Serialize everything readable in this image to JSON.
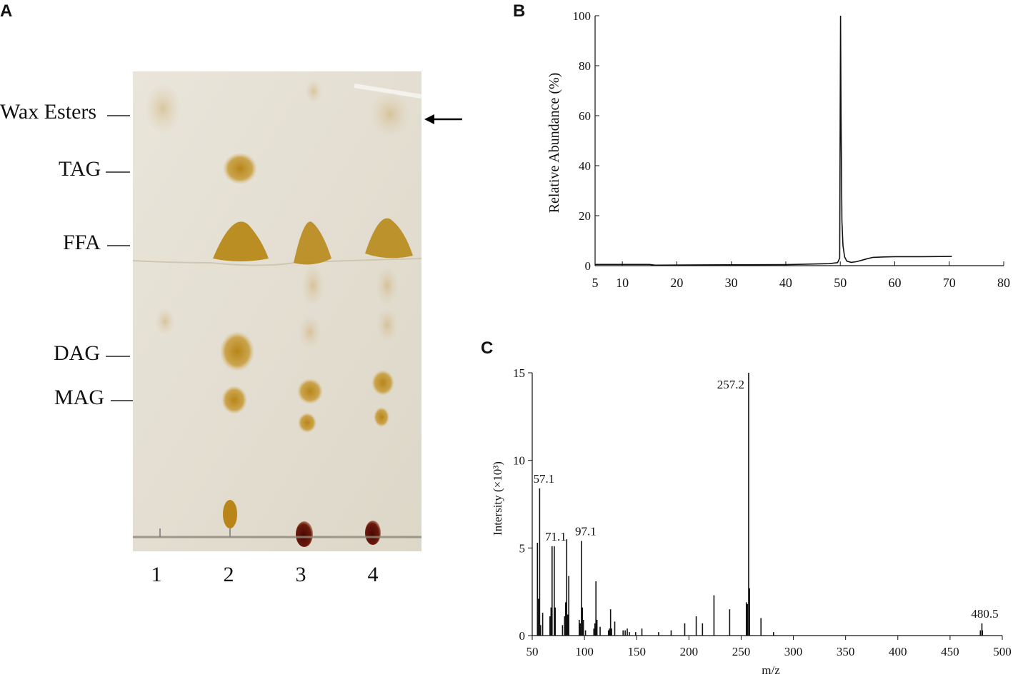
{
  "panels": {
    "a": "A",
    "b": "B",
    "c": "C"
  },
  "tlc": {
    "bands": [
      {
        "id": "wax",
        "label": "Wax Esters"
      },
      {
        "id": "tag",
        "label": "TAG"
      },
      {
        "id": "ffa",
        "label": "FFA"
      },
      {
        "id": "dag",
        "label": "DAG"
      },
      {
        "id": "mag",
        "label": "MAG"
      }
    ],
    "lanes": [
      "1",
      "2",
      "3",
      "4"
    ],
    "arrow": "arrow-left-icon",
    "colors": {
      "plate": "#e6e1d5",
      "spot": "#b5810e",
      "origin_spot": "#5a1008"
    }
  },
  "chart_data": [
    {
      "type": "line",
      "panel": "B",
      "title": "",
      "xlabel": "",
      "ylabel": "Relative  Abundance (%)",
      "xlim": [
        5,
        80
      ],
      "ylim": [
        0,
        100
      ],
      "x_ticks": [
        5,
        10,
        20,
        30,
        40,
        50,
        60,
        70,
        80
      ],
      "y_ticks": [
        0,
        20,
        40,
        60,
        80,
        100
      ],
      "series": [
        {
          "x": [
            5,
            15,
            16,
            25,
            40,
            48,
            49.5,
            49.9,
            50.05,
            50.15,
            50.3,
            50.5,
            50.8,
            51.2,
            52,
            53,
            54,
            55,
            56,
            58,
            60,
            65,
            70.5
          ],
          "y": [
            0.5,
            0.5,
            0.2,
            0.3,
            0.4,
            0.8,
            1.2,
            3,
            100,
            60,
            18,
            8,
            3.5,
            1.8,
            1.3,
            1.6,
            2.2,
            2.8,
            3.3,
            3.5,
            3.6,
            3.6,
            3.7
          ]
        }
      ],
      "grid": false
    },
    {
      "type": "bar",
      "panel": "C",
      "title": "",
      "xlabel": "m/z",
      "ylabel": "Intersity (×10³)",
      "xlim": [
        50,
        500
      ],
      "ylim": [
        0,
        15
      ],
      "x_ticks": [
        50,
        100,
        150,
        200,
        250,
        300,
        350,
        400,
        450,
        500
      ],
      "y_ticks": [
        0,
        5,
        10,
        15
      ],
      "peaks": [
        {
          "mz": 55,
          "intensity": 5.3
        },
        {
          "mz": 56,
          "intensity": 2.1
        },
        {
          "mz": 57.1,
          "intensity": 8.4,
          "label": "57.1"
        },
        {
          "mz": 58,
          "intensity": 0.6
        },
        {
          "mz": 60,
          "intensity": 1.3
        },
        {
          "mz": 67,
          "intensity": 1.1
        },
        {
          "mz": 68,
          "intensity": 1.6
        },
        {
          "mz": 69,
          "intensity": 5.1
        },
        {
          "mz": 71.1,
          "intensity": 5.1,
          "label": "71.1"
        },
        {
          "mz": 72,
          "intensity": 1.6
        },
        {
          "mz": 79,
          "intensity": 0.6
        },
        {
          "mz": 81,
          "intensity": 1.1
        },
        {
          "mz": 82,
          "intensity": 1.9
        },
        {
          "mz": 83,
          "intensity": 5.5
        },
        {
          "mz": 84,
          "intensity": 1.2
        },
        {
          "mz": 85,
          "intensity": 3.4
        },
        {
          "mz": 95,
          "intensity": 0.9
        },
        {
          "mz": 96,
          "intensity": 0.7
        },
        {
          "mz": 97.1,
          "intensity": 5.4,
          "label": "97.1"
        },
        {
          "mz": 98,
          "intensity": 1.6
        },
        {
          "mz": 99,
          "intensity": 0.9
        },
        {
          "mz": 101,
          "intensity": 0.3
        },
        {
          "mz": 109,
          "intensity": 0.4
        },
        {
          "mz": 110,
          "intensity": 0.7
        },
        {
          "mz": 111,
          "intensity": 3.1
        },
        {
          "mz": 112,
          "intensity": 0.9
        },
        {
          "mz": 115,
          "intensity": 0.5
        },
        {
          "mz": 123,
          "intensity": 0.3
        },
        {
          "mz": 124,
          "intensity": 0.4
        },
        {
          "mz": 125,
          "intensity": 1.5
        },
        {
          "mz": 126,
          "intensity": 0.4
        },
        {
          "mz": 129,
          "intensity": 0.8
        },
        {
          "mz": 137,
          "intensity": 0.3
        },
        {
          "mz": 139,
          "intensity": 0.3
        },
        {
          "mz": 141,
          "intensity": 0.4
        },
        {
          "mz": 143,
          "intensity": 0.2
        },
        {
          "mz": 149,
          "intensity": 0.2
        },
        {
          "mz": 155,
          "intensity": 0.4
        },
        {
          "mz": 171,
          "intensity": 0.2
        },
        {
          "mz": 183,
          "intensity": 0.3
        },
        {
          "mz": 196,
          "intensity": 0.7
        },
        {
          "mz": 207,
          "intensity": 1.1
        },
        {
          "mz": 213,
          "intensity": 0.7
        },
        {
          "mz": 224,
          "intensity": 2.3
        },
        {
          "mz": 239,
          "intensity": 1.5
        },
        {
          "mz": 255,
          "intensity": 1.9
        },
        {
          "mz": 256,
          "intensity": 1.8
        },
        {
          "mz": 257.2,
          "intensity": 15,
          "label": "257.2"
        },
        {
          "mz": 258,
          "intensity": 2.7
        },
        {
          "mz": 269,
          "intensity": 1.0
        },
        {
          "mz": 281,
          "intensity": 0.2
        },
        {
          "mz": 479,
          "intensity": 0.3
        },
        {
          "mz": 480.5,
          "intensity": 0.7,
          "label": "480.5"
        },
        {
          "mz": 481,
          "intensity": 0.3
        }
      ],
      "grid": false
    }
  ]
}
